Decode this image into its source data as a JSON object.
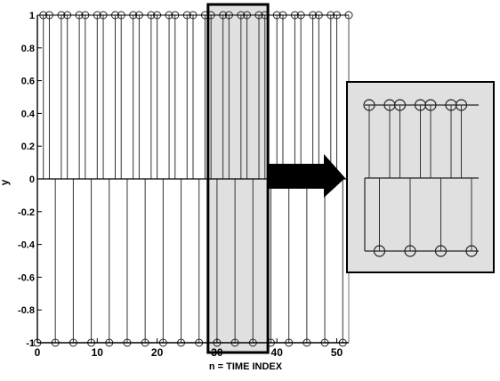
{
  "chart_data": {
    "type": "stem",
    "xlabel": "n = TIME INDEX",
    "ylabel": "y",
    "xlim": [
      0,
      52
    ],
    "ylim": [
      -1,
      1
    ],
    "x_ticks": [
      0,
      10,
      20,
      30,
      40,
      50
    ],
    "y_ticks": [
      1,
      0.8,
      0.6,
      0.4,
      0.2,
      0,
      -0.2,
      -0.4,
      -0.6,
      -0.8,
      -1
    ],
    "y_tick_labels": [
      "1",
      "0.8",
      "0.6",
      "0.4",
      "0.2",
      "0",
      "-0.2",
      "-0.4",
      "-0.6",
      "-0.8",
      "-1"
    ],
    "x_tick_labels": [
      "0",
      "10",
      "20",
      "30",
      "40",
      "50"
    ],
    "stems": {
      "x": [
        0,
        1,
        2,
        3,
        4,
        5,
        6,
        7,
        8,
        9,
        10,
        11,
        12,
        13,
        14,
        15,
        16,
        17,
        18,
        19,
        20,
        21,
        22,
        23,
        24,
        25,
        26,
        27,
        28,
        29,
        30,
        31,
        32,
        33,
        34,
        35,
        36,
        37,
        38,
        39,
        40,
        41,
        42,
        43,
        44,
        45,
        46,
        47,
        48,
        49,
        50,
        51,
        52
      ],
      "y": [
        -1,
        1,
        1,
        -1,
        1,
        1,
        -1,
        1,
        1,
        -1,
        1,
        1,
        -1,
        1,
        1,
        -1,
        1,
        1,
        -1,
        1,
        1,
        -1,
        1,
        1,
        -1,
        1,
        1,
        -1,
        1,
        1,
        -1,
        1,
        1,
        -1,
        1,
        1,
        -1,
        1,
        1,
        -1,
        1,
        1,
        -1,
        1,
        1,
        -1,
        1,
        1,
        -1,
        1,
        1,
        -1,
        1
      ]
    },
    "highlight": {
      "x_range": [
        28.5,
        38.5
      ],
      "color": "#e0e0e0"
    },
    "arrow_color": "#000000"
  }
}
